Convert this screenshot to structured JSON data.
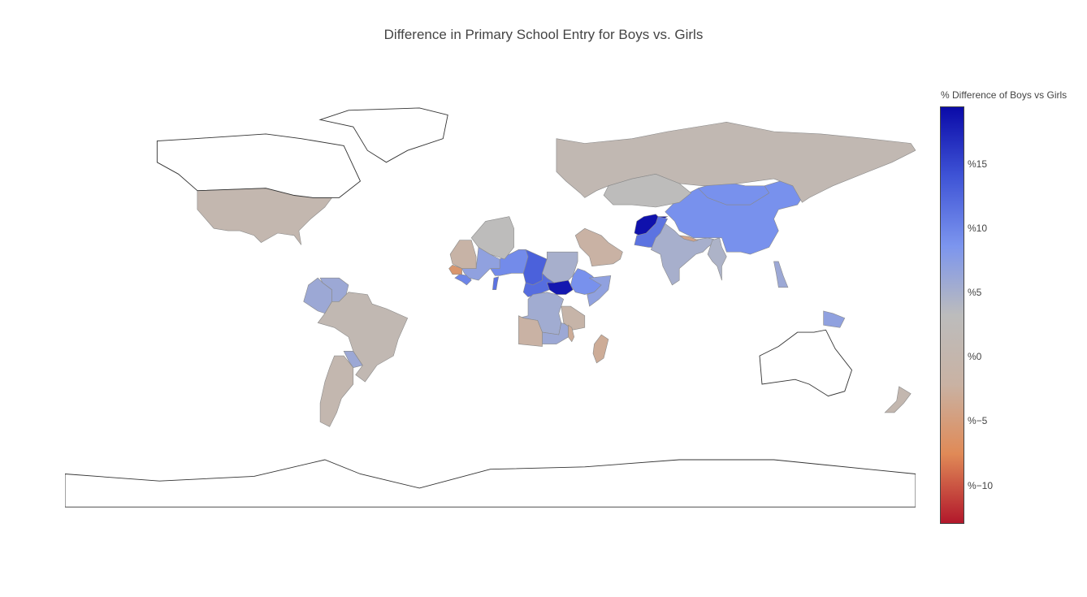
{
  "title": "Difference in Primary School Entry for Boys vs. Girls",
  "colorbar": {
    "title": "% Difference of Boys vs Girls",
    "min": -13,
    "max": 19.5,
    "ticks": [
      {
        "value": 15,
        "label": "%15"
      },
      {
        "value": 10,
        "label": "%10"
      },
      {
        "value": 5,
        "label": "%5"
      },
      {
        "value": 0,
        "label": "%0"
      },
      {
        "value": -5,
        "label": "%−5"
      },
      {
        "value": -10,
        "label": "%−10"
      }
    ],
    "colorscale": [
      "#b2182b",
      "#e08a57",
      "#c9b2a3",
      "#bcbcbc",
      "#7c95ee",
      "#3f54d6",
      "#0a0aa8"
    ]
  },
  "chart_data": {
    "type": "choropleth",
    "projection": "equirectangular",
    "value_label": "% Difference of Boys vs Girls",
    "regions": [
      {
        "name": "Afghanistan",
        "value": 19
      },
      {
        "name": "South Sudan",
        "value": 18.5
      },
      {
        "name": "Chad",
        "value": 13
      },
      {
        "name": "Central African Republic",
        "value": 12
      },
      {
        "name": "Pakistan",
        "value": 11.5
      },
      {
        "name": "Benin",
        "value": 11.5
      },
      {
        "name": "Niger",
        "value": 9.5
      },
      {
        "name": "China",
        "value": 9
      },
      {
        "name": "Ethiopia",
        "value": 9
      },
      {
        "name": "Mongolia",
        "value": 9
      },
      {
        "name": "Guinea",
        "value": 10
      },
      {
        "name": "Mali",
        "value": 7
      },
      {
        "name": "Somalia",
        "value": 7
      },
      {
        "name": "Papua New Guinea",
        "value": 7
      },
      {
        "name": "Colombia",
        "value": 6
      },
      {
        "name": "Venezuela",
        "value": 6
      },
      {
        "name": "Philippines",
        "value": 6
      },
      {
        "name": "DR Congo",
        "value": 5.5
      },
      {
        "name": "Sudan",
        "value": 5
      },
      {
        "name": "India",
        "value": 5
      },
      {
        "name": "Myanmar",
        "value": 4.5
      },
      {
        "name": "Zambia",
        "value": 6
      },
      {
        "name": "Paraguay",
        "value": 6
      },
      {
        "name": "Russia",
        "value": 1
      },
      {
        "name": "United States",
        "value": 0.5
      },
      {
        "name": "Brazil",
        "value": 1
      },
      {
        "name": "Argentina",
        "value": 0.5
      },
      {
        "name": "Algeria",
        "value": 3
      },
      {
        "name": "Kazakhstan",
        "value": 3
      },
      {
        "name": "Saudi Arabia",
        "value": -2
      },
      {
        "name": "Mauritania",
        "value": -1.5
      },
      {
        "name": "Madagascar",
        "value": -3
      },
      {
        "name": "Angola",
        "value": -2
      },
      {
        "name": "Tanzania",
        "value": -1
      },
      {
        "name": "Nepal",
        "value": -4
      },
      {
        "name": "Senegal",
        "value": -6
      },
      {
        "name": "Malawi",
        "value": -3
      },
      {
        "name": "New Zealand",
        "value": 0.5
      },
      {
        "name": "Canada",
        "value": null
      },
      {
        "name": "Greenland",
        "value": null
      },
      {
        "name": "Australia",
        "value": null
      },
      {
        "name": "Antarctica",
        "value": null
      }
    ]
  }
}
